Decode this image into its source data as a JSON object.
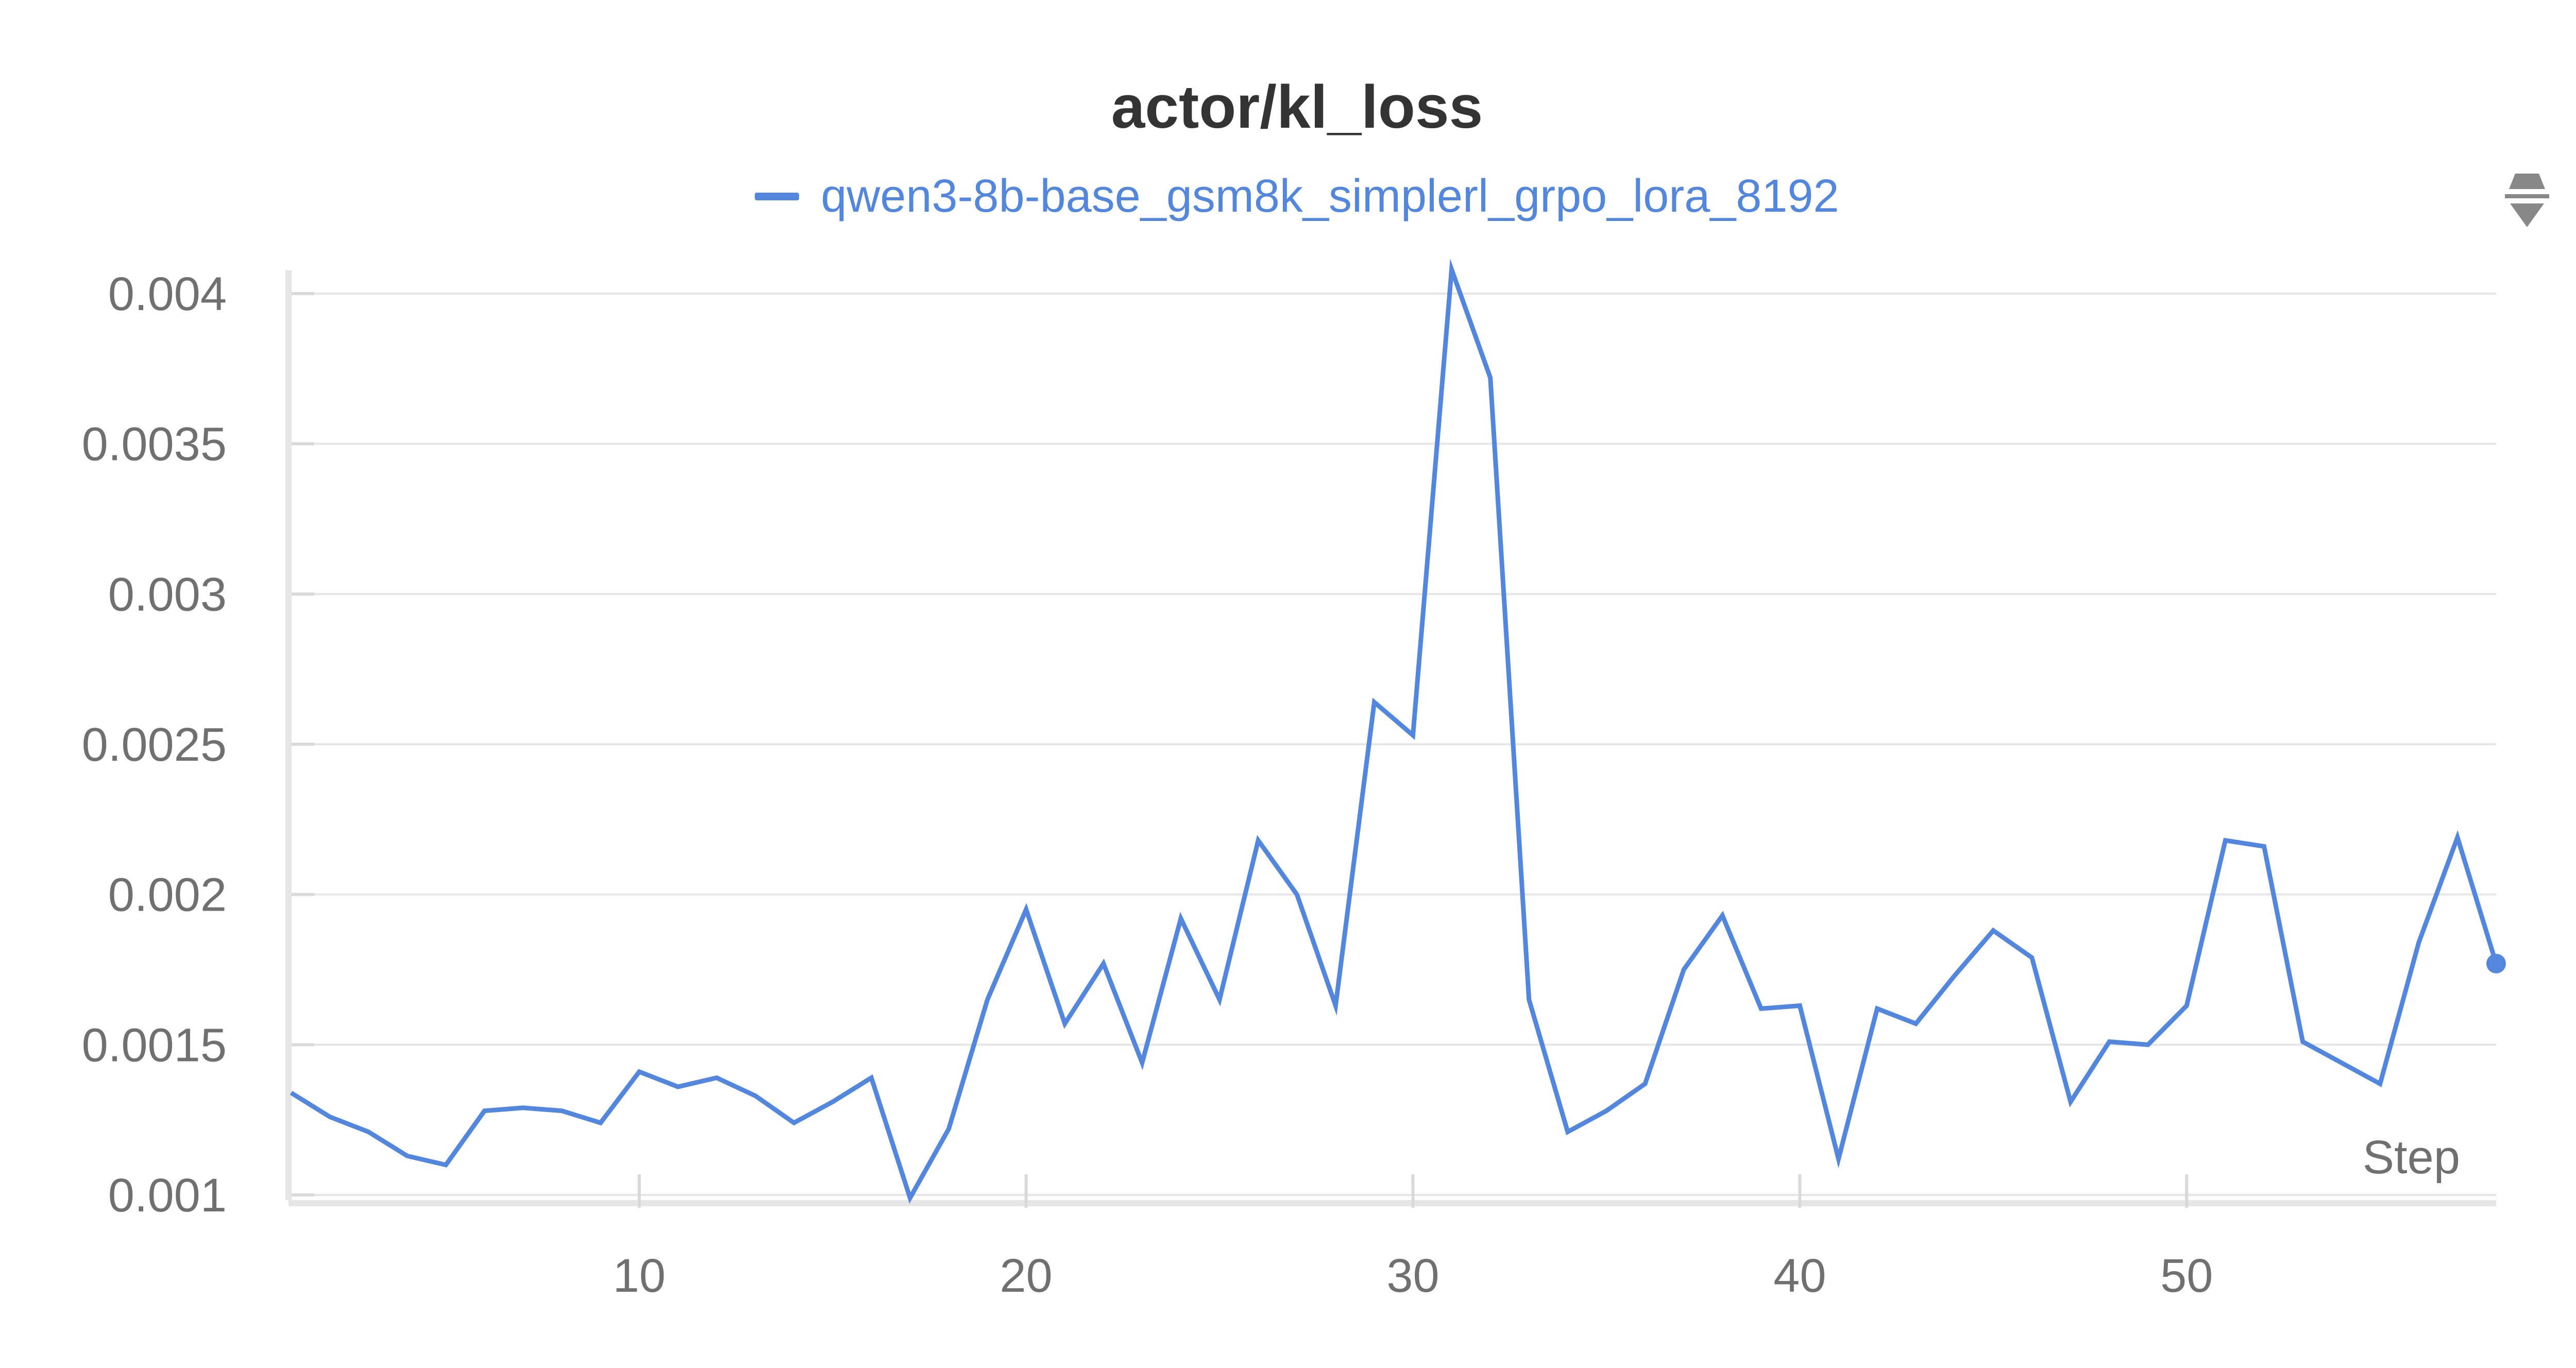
{
  "chart_data": {
    "type": "line",
    "title": "actor/kl_loss",
    "xlabel": "Step",
    "ylabel": "",
    "xlim": [
      1,
      58
    ],
    "ylim": [
      0.00099,
      0.00408
    ],
    "x_ticks": [
      10,
      20,
      30,
      40,
      50
    ],
    "y_ticks": [
      0.001,
      0.0015,
      0.002,
      0.0025,
      0.003,
      0.0035,
      0.004
    ],
    "y_tick_labels": [
      "0.001",
      "0.0015",
      "0.002",
      "0.0025",
      "0.003",
      "0.0035",
      "0.004"
    ],
    "grid": true,
    "legend_position": "top-center",
    "series": [
      {
        "name": "qwen3-8b-base_gsm8k_simplerl_grpo_lora_8192",
        "color": "#5387dd",
        "x": [
          1,
          2,
          3,
          4,
          5,
          6,
          7,
          8,
          9,
          10,
          11,
          12,
          13,
          14,
          15,
          16,
          17,
          18,
          19,
          20,
          21,
          22,
          23,
          24,
          25,
          26,
          27,
          28,
          29,
          30,
          31,
          32,
          33,
          34,
          35,
          36,
          37,
          38,
          39,
          40,
          41,
          42,
          43,
          44,
          45,
          46,
          47,
          48,
          49,
          50,
          51,
          52,
          53,
          54,
          55,
          56,
          57,
          58
        ],
        "values": [
          0.00134,
          0.00126,
          0.00121,
          0.00113,
          0.0011,
          0.00128,
          0.00129,
          0.00128,
          0.00124,
          0.00141,
          0.00136,
          0.00139,
          0.00133,
          0.00124,
          0.00131,
          0.00139,
          0.00099,
          0.00122,
          0.00165,
          0.00195,
          0.00157,
          0.00177,
          0.00144,
          0.00192,
          0.00165,
          0.00218,
          0.002,
          0.00163,
          0.00264,
          0.00253,
          0.00408,
          0.00372,
          0.00165,
          0.00121,
          0.00128,
          0.00137,
          0.00175,
          0.00193,
          0.00162,
          0.00163,
          0.00112,
          0.00162,
          0.00157,
          0.00173,
          0.00188,
          0.00179,
          0.00131,
          0.00151,
          0.0015,
          0.00163,
          0.00218,
          0.00216,
          0.00151,
          0.00144,
          0.00137,
          0.00184,
          0.00219,
          0.00177
        ]
      }
    ]
  },
  "icons": {
    "legend_menu": "scroll-arrows-icon"
  }
}
